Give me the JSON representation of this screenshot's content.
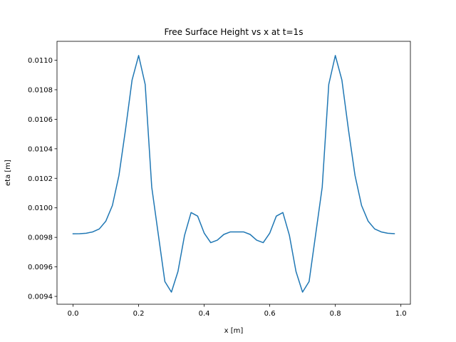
{
  "chart_data": {
    "type": "line",
    "title": "Free Surface Height vs x at t=1s",
    "xlabel": "x [m]",
    "ylabel": "eta [m]",
    "xlim": [
      -0.049,
      1.029
    ],
    "ylim": [
      0.009347,
      0.011128
    ],
    "grid": false,
    "x_ticks": [
      0.0,
      0.2,
      0.4,
      0.6,
      0.8,
      1.0
    ],
    "x_tick_labels": [
      "0.0",
      "0.2",
      "0.4",
      "0.6",
      "0.8",
      "1.0"
    ],
    "y_ticks": [
      0.0094,
      0.0096,
      0.0098,
      0.01,
      0.0102,
      0.0104,
      0.0106,
      0.0108,
      0.011
    ],
    "y_tick_labels": [
      "0.0094",
      "0.0096",
      "0.0098",
      "0.0100",
      "0.0102",
      "0.0104",
      "0.0106",
      "0.0108",
      "0.0110"
    ],
    "series": [
      {
        "color": "#1f77b4",
        "x": [
          0.0,
          0.02,
          0.04,
          0.06,
          0.08,
          0.1,
          0.12,
          0.14,
          0.16,
          0.18,
          0.2,
          0.22,
          0.24,
          0.26,
          0.28,
          0.3,
          0.32,
          0.34,
          0.36,
          0.38,
          0.4,
          0.42,
          0.44,
          0.46,
          0.48,
          0.5,
          0.52,
          0.54,
          0.56,
          0.58,
          0.6,
          0.62,
          0.64,
          0.66,
          0.68,
          0.7,
          0.72,
          0.74,
          0.76,
          0.78,
          0.8,
          0.82,
          0.84,
          0.86,
          0.88,
          0.9,
          0.92,
          0.94,
          0.96,
          0.98
        ],
        "y": [
          0.009824,
          0.009825,
          0.009828,
          0.009837,
          0.009857,
          0.00991,
          0.010016,
          0.01022,
          0.01053,
          0.010866,
          0.011032,
          0.010836,
          0.01014,
          0.00982,
          0.009501,
          0.009429,
          0.009569,
          0.009813,
          0.009968,
          0.009944,
          0.009829,
          0.009764,
          0.009781,
          0.00982,
          0.009837,
          0.009837,
          0.009837,
          0.00982,
          0.009781,
          0.009764,
          0.009829,
          0.009944,
          0.009968,
          0.009813,
          0.009569,
          0.009429,
          0.009501,
          0.00982,
          0.01014,
          0.010836,
          0.011032,
          0.010866,
          0.01053,
          0.01022,
          0.010016,
          0.00991,
          0.009857,
          0.009837,
          0.009828,
          0.009825
        ]
      }
    ]
  }
}
